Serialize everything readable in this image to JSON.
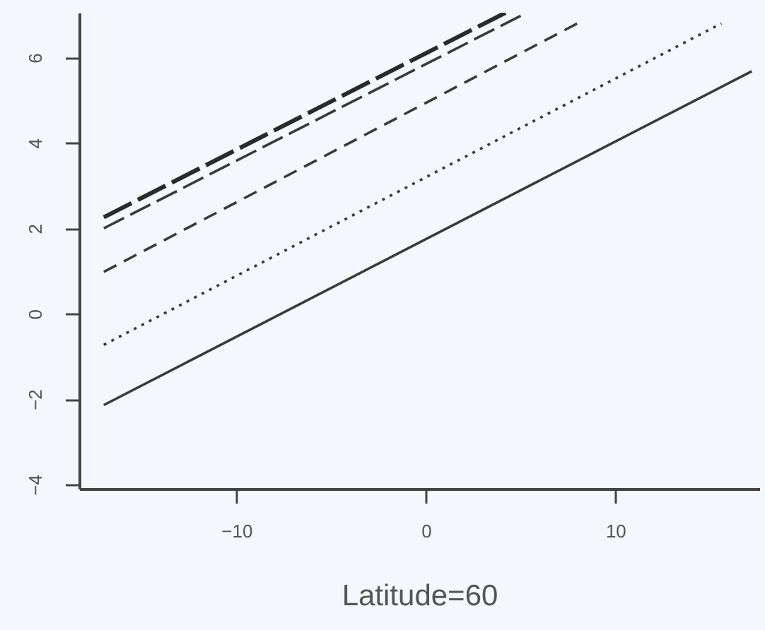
{
  "chart_data": {
    "type": "line",
    "xlabel": "Latitude=60",
    "xlim": [
      -18.3,
      17.6
    ],
    "xticks": [
      -10,
      0,
      10
    ],
    "ylim": [
      -4.1,
      7.05
    ],
    "yticks": [
      -4,
      -2,
      0,
      2,
      4,
      6
    ],
    "grid": false,
    "marker": "none",
    "series": [
      {
        "color": "#3a3a3a",
        "line_style": "solid",
        "x": [
          -17,
          17.2
        ],
        "values": [
          -2.14,
          5.68
        ]
      },
      {
        "color": "#3a3a3a",
        "line_style": "dotted",
        "x": [
          -17,
          15.6
        ],
        "values": [
          -0.73,
          6.8
        ]
      },
      {
        "color": "#3a3a3a",
        "line_style": "dashed",
        "x": [
          -17,
          8.0
        ],
        "values": [
          0.98,
          6.8
        ]
      },
      {
        "color": "#3a3a3a",
        "line_style": "dashed",
        "x": [
          -17,
          5.1
        ],
        "values": [
          2.0,
          7.0
        ]
      },
      {
        "color": "#2a2a2a",
        "line_style": "dashed",
        "x": [
          -17,
          4.2
        ],
        "values": [
          2.26,
          7.05
        ]
      }
    ]
  }
}
